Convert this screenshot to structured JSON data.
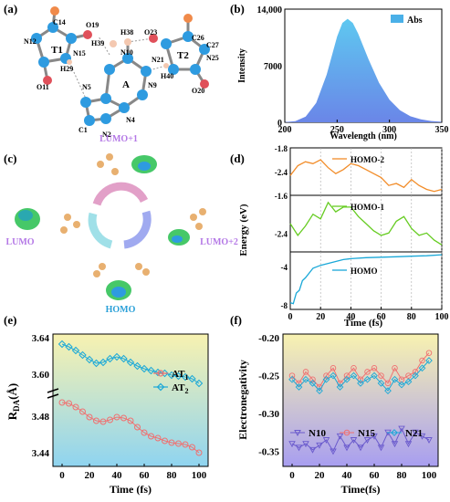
{
  "panel_labels": [
    "(a)",
    "(b)",
    "(c)",
    "(d)",
    "(e)",
    "(f)"
  ],
  "colors": {
    "accent_blue": "#2e9be0",
    "orange": "#f28c28",
    "green": "#66cc22",
    "cyan": "#1aa8d8",
    "red": "#f07070",
    "purple": "#6a5acd",
    "lumo_text": "#b478e6",
    "homo_text": "#2aa0d8"
  },
  "molecule": {
    "rings": [
      "T1",
      "A",
      "T2"
    ],
    "atoms": [
      "C14",
      "N12",
      "O19",
      "N15",
      "H29",
      "O11",
      "H39",
      "H38",
      "N10",
      "O23",
      "C26",
      "C27",
      "N21",
      "N25",
      "H40",
      "O20",
      "N5",
      "A",
      "N9",
      "C1",
      "N2",
      "N4"
    ]
  },
  "orbitals": {
    "lumo1": "LUMO+1",
    "lumo": "LUMO",
    "lumo2": "LUMO+2",
    "homo": "HOMO"
  },
  "chart_data": [
    {
      "id": "b",
      "type": "area",
      "xlabel": "Wavelength (nm)",
      "ylabel": "Intensity",
      "legend": "Abs",
      "legend_position": "top-right",
      "xlim": [
        200,
        350
      ],
      "ylim": [
        0,
        14000
      ],
      "xticks": [
        "200",
        "250",
        "300",
        "350"
      ],
      "yticks": [
        "0",
        "7000",
        "14,000"
      ],
      "x": [
        200,
        210,
        220,
        230,
        240,
        250,
        255,
        260,
        265,
        270,
        280,
        290,
        300,
        310,
        320,
        330,
        340,
        350
      ],
      "y": [
        30,
        150,
        700,
        2400,
        5900,
        10600,
        12300,
        12800,
        12300,
        11000,
        7800,
        4900,
        2800,
        1500,
        750,
        360,
        160,
        70
      ]
    },
    {
      "id": "d",
      "type": "line",
      "xlabel": "Time (fs)",
      "ylabel": "Energy (eV)",
      "xlim": [
        0,
        100
      ],
      "xticks": [
        "0",
        "20",
        "40",
        "60",
        "80",
        "100"
      ],
      "grid": "dashed vertical",
      "subplots": [
        {
          "name": "HOMO-2",
          "ylim": [
            -3.0,
            -1.8
          ],
          "yticks": [
            "-1.8",
            "-2.4"
          ],
          "x": [
            0,
            5,
            10,
            15,
            20,
            25,
            30,
            35,
            40,
            45,
            50,
            55,
            60,
            65,
            70,
            75,
            80,
            85,
            90,
            95,
            100
          ],
          "y": [
            -2.5,
            -2.25,
            -2.15,
            -2.2,
            -2.1,
            -2.3,
            -2.45,
            -2.35,
            -2.2,
            -2.25,
            -2.35,
            -2.45,
            -2.55,
            -2.75,
            -2.7,
            -2.8,
            -2.6,
            -2.75,
            -2.85,
            -2.9,
            -2.85
          ]
        },
        {
          "name": "HOMO-1",
          "ylim": [
            -2.8,
            -1.6
          ],
          "yticks": [
            "-1.6",
            "-2.4"
          ],
          "x": [
            0,
            5,
            10,
            15,
            20,
            25,
            30,
            35,
            40,
            45,
            50,
            55,
            60,
            65,
            70,
            75,
            80,
            85,
            90,
            95,
            100
          ],
          "y": [
            -2.2,
            -2.45,
            -2.25,
            -2.0,
            -2.1,
            -1.75,
            -1.95,
            -1.85,
            -1.85,
            -2.05,
            -2.2,
            -2.35,
            -2.45,
            -2.4,
            -2.15,
            -2.05,
            -2.3,
            -2.45,
            -2.4,
            -2.55,
            -2.65
          ]
        },
        {
          "name": "HOMO",
          "ylim": [
            -8.5,
            -2.5
          ],
          "yticks": [
            "-4",
            "-8"
          ],
          "x": [
            0,
            2,
            4,
            6,
            8,
            10,
            15,
            20,
            25,
            30,
            35,
            40,
            50,
            60,
            70,
            80,
            90,
            100
          ],
          "y": [
            -7.8,
            -7.9,
            -6.8,
            -6.5,
            -5.5,
            -5.2,
            -4.2,
            -3.9,
            -3.7,
            -3.5,
            -3.3,
            -3.2,
            -3.1,
            -3.05,
            -3.0,
            -2.95,
            -2.9,
            -2.8
          ]
        }
      ]
    },
    {
      "id": "e",
      "type": "line",
      "xlabel": "Time (fs)",
      "ylabel": "R",
      "ylabel_sub": "DA",
      "ylabel_unit": "(Å)",
      "xlim": [
        0,
        100
      ],
      "xticks": [
        "0",
        "20",
        "40",
        "60",
        "80",
        "100"
      ],
      "upper_ylim": [
        3.58,
        3.64
      ],
      "upper_yticks": [
        "3.60",
        "3.64"
      ],
      "lower_ylim": [
        3.43,
        3.5
      ],
      "lower_yticks": [
        "3.44",
        "3.48"
      ],
      "legend_position": "right",
      "series": [
        {
          "name": "AT",
          "sub": "1",
          "x": [
            0,
            5,
            10,
            15,
            20,
            25,
            30,
            35,
            40,
            45,
            50,
            55,
            60,
            65,
            70,
            75,
            80,
            85,
            90,
            95,
            100
          ],
          "y": [
            3.495,
            3.494,
            3.49,
            3.485,
            3.479,
            3.475,
            3.474,
            3.476,
            3.479,
            3.478,
            3.475,
            3.468,
            3.462,
            3.458,
            3.456,
            3.453,
            3.451,
            3.45,
            3.449,
            3.446,
            3.44
          ]
        },
        {
          "name": "AT",
          "sub": "2",
          "x": [
            0,
            5,
            10,
            15,
            20,
            25,
            30,
            35,
            40,
            45,
            50,
            55,
            60,
            65,
            70,
            75,
            80,
            85,
            90,
            95,
            100
          ],
          "y": [
            3.633,
            3.63,
            3.626,
            3.621,
            3.616,
            3.612,
            3.613,
            3.617,
            3.619,
            3.617,
            3.613,
            3.609,
            3.606,
            3.604,
            3.602,
            3.601,
            3.599,
            3.598,
            3.597,
            3.595,
            3.59
          ]
        }
      ]
    },
    {
      "id": "f",
      "type": "line",
      "xlabel": "Time(fs)",
      "ylabel": "Electronegativity",
      "xlim": [
        0,
        100
      ],
      "ylim": [
        -0.37,
        -0.195
      ],
      "xticks": [
        "0",
        "20",
        "40",
        "60",
        "80",
        "100"
      ],
      "yticks": [
        "-0.20",
        "-0.25",
        "-0.30",
        "-0.35"
      ],
      "legend_position": "bottom",
      "series": [
        {
          "name": "N10",
          "x": [
            0,
            5,
            10,
            15,
            20,
            25,
            30,
            35,
            40,
            45,
            50,
            55,
            60,
            65,
            70,
            75,
            80,
            85,
            90,
            95,
            100
          ],
          "y": [
            -0.34,
            -0.345,
            -0.34,
            -0.348,
            -0.342,
            -0.335,
            -0.35,
            -0.33,
            -0.345,
            -0.335,
            -0.345,
            -0.335,
            -0.33,
            -0.345,
            -0.325,
            -0.34,
            -0.32,
            -0.34,
            -0.325,
            -0.33,
            -0.335
          ]
        },
        {
          "name": "N15",
          "x": [
            0,
            5,
            10,
            15,
            20,
            25,
            30,
            35,
            40,
            45,
            50,
            55,
            60,
            65,
            70,
            75,
            80,
            85,
            90,
            95,
            100
          ],
          "y": [
            -0.25,
            -0.26,
            -0.245,
            -0.255,
            -0.265,
            -0.25,
            -0.24,
            -0.26,
            -0.25,
            -0.24,
            -0.255,
            -0.245,
            -0.24,
            -0.25,
            -0.26,
            -0.24,
            -0.255,
            -0.25,
            -0.245,
            -0.23,
            -0.22
          ]
        },
        {
          "name": "N21",
          "x": [
            0,
            5,
            10,
            15,
            20,
            25,
            30,
            35,
            40,
            45,
            50,
            55,
            60,
            65,
            70,
            75,
            80,
            85,
            90,
            95,
            100
          ],
          "y": [
            -0.255,
            -0.265,
            -0.255,
            -0.26,
            -0.27,
            -0.255,
            -0.25,
            -0.265,
            -0.255,
            -0.25,
            -0.26,
            -0.255,
            -0.25,
            -0.26,
            -0.27,
            -0.255,
            -0.262,
            -0.258,
            -0.25,
            -0.24,
            -0.23
          ]
        }
      ]
    }
  ]
}
